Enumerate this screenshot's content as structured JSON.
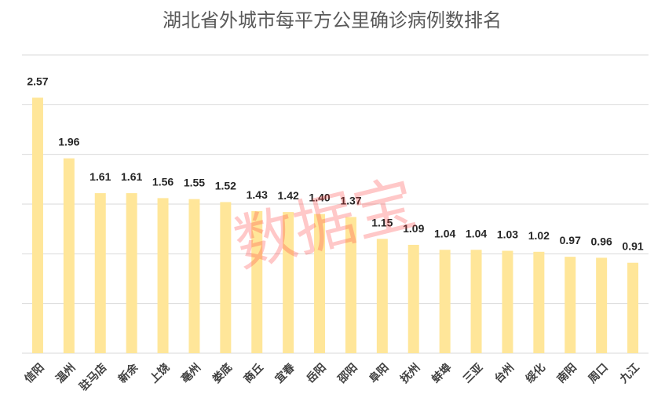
{
  "chart_data": {
    "type": "bar",
    "title": "湖北省外城市每平方公里确诊病例数排名",
    "categories": [
      "信阳",
      "温州",
      "驻马店",
      "新余",
      "上饶",
      "亳州",
      "娄底",
      "商丘",
      "宜春",
      "岳阳",
      "邵阳",
      "阜阳",
      "抚州",
      "蚌埠",
      "三亚",
      "台州",
      "绥化",
      "南阳",
      "周口",
      "九江"
    ],
    "values": [
      2.57,
      1.96,
      1.61,
      1.61,
      1.56,
      1.55,
      1.52,
      1.43,
      1.42,
      1.4,
      1.37,
      1.15,
      1.09,
      1.04,
      1.04,
      1.03,
      1.02,
      0.97,
      0.96,
      0.91
    ],
    "value_labels": [
      "2.57",
      "1.96",
      "1.61",
      "1.61",
      "1.56",
      "1.55",
      "1.52",
      "1.43",
      "1.42",
      "1.40",
      "1.37",
      "1.15",
      "1.09",
      "1.04",
      "1.04",
      "1.03",
      "1.02",
      "0.97",
      "0.96",
      "0.91"
    ],
    "ylim": [
      0,
      3
    ],
    "grid": true,
    "legend": "none",
    "bar_color": "#FFE699",
    "watermark": "数据宝",
    "watermark_color": "#FF3B3B"
  }
}
